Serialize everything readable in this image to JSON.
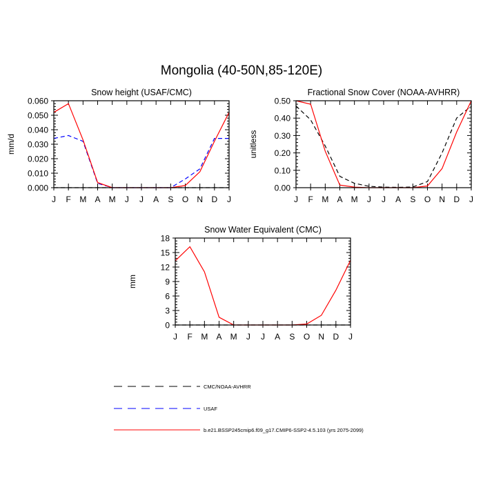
{
  "page_title": "Mongolia (40-50N,85-120E)",
  "months": [
    "J",
    "F",
    "M",
    "A",
    "M",
    "J",
    "J",
    "A",
    "S",
    "O",
    "N",
    "D",
    "J"
  ],
  "legend": [
    {
      "label": "CMC/NOAA-AVHRR",
      "color": "#000000",
      "dash": "dashed"
    },
    {
      "label": "USAF",
      "color": "#0000ff",
      "dash": "dashed"
    },
    {
      "label": "b.e21.BSSP245cmip6.f09_g17.CMIP6-SSP2-4.5.103 (yrs 2075-2099)",
      "color": "#ff0000",
      "dash": "solid"
    }
  ],
  "chart_data": [
    {
      "type": "line",
      "title": "Snow height (USAF/CMC)",
      "ylabel": "mm/d",
      "ylim": [
        0,
        0.06
      ],
      "yticks": [
        "0.000",
        "0.010",
        "0.020",
        "0.030",
        "0.040",
        "0.050",
        "0.060"
      ],
      "series": [
        {
          "name": "CMC/NOAA-AVHRR",
          "color": "#000000",
          "dash": "dashed",
          "values": [
            0,
            0,
            0,
            0,
            0,
            0,
            0,
            0,
            0,
            0,
            0,
            0,
            0
          ]
        },
        {
          "name": "USAF",
          "color": "#0000ff",
          "dash": "dashed",
          "values": [
            0.034,
            0.036,
            0.032,
            0.003,
            0,
            0,
            0,
            0,
            0,
            0.006,
            0.013,
            0.034,
            0.034
          ]
        },
        {
          "name": "b.e21.BSSP245cmip6.f09_g17.CMIP6-SSP2-4.5.103 (yrs 2075-2099)",
          "color": "#ff0000",
          "dash": "solid",
          "values": [
            0.052,
            0.058,
            0.033,
            0.0035,
            0,
            0,
            0,
            0,
            0,
            0.0015,
            0.011,
            0.032,
            0.052
          ]
        }
      ]
    },
    {
      "type": "line",
      "title": "Fractional Snow Cover (NOAA-AVHRR)",
      "ylabel": "unitless",
      "ylim": [
        0,
        0.5
      ],
      "yticks": [
        "0.00",
        "0.10",
        "0.20",
        "0.30",
        "0.40",
        "0.50"
      ],
      "series": [
        {
          "name": "CMC/NOAA-AVHRR",
          "color": "#000000",
          "dash": "dashed",
          "values": [
            0.47,
            0.39,
            0.24,
            0.065,
            0.025,
            0.008,
            0.003,
            0.002,
            0.004,
            0.035,
            0.2,
            0.4,
            0.47
          ]
        },
        {
          "name": "b.e21.BSSP245cmip6.f09_g17.CMIP6-SSP2-4.5.103 (yrs 2075-2099)",
          "color": "#ff0000",
          "dash": "solid",
          "values": [
            0.5,
            0.48,
            0.21,
            0.015,
            0.003,
            0,
            0,
            0,
            0,
            0.01,
            0.11,
            0.32,
            0.5
          ]
        }
      ]
    },
    {
      "type": "line",
      "title": "Snow Water Equivalent (CMC)",
      "ylabel": "mm",
      "ylim": [
        0,
        18
      ],
      "yticks": [
        "0",
        "3",
        "6",
        "9",
        "12",
        "15",
        "18"
      ],
      "series": [
        {
          "name": "CMC/NOAA-AVHRR",
          "color": "#000000",
          "dash": "dashed",
          "values": [
            0,
            0,
            0,
            0,
            0,
            0,
            0,
            0,
            0,
            0,
            0,
            0,
            0
          ]
        },
        {
          "name": "b.e21.BSSP245cmip6.f09_g17.CMIP6-SSP2-4.5.103 (yrs 2075-2099)",
          "color": "#ff0000",
          "dash": "solid",
          "values": [
            13.3,
            16.2,
            11,
            1.6,
            0,
            0,
            0,
            0,
            0,
            0.2,
            2,
            7.2,
            13.4
          ]
        }
      ]
    }
  ]
}
